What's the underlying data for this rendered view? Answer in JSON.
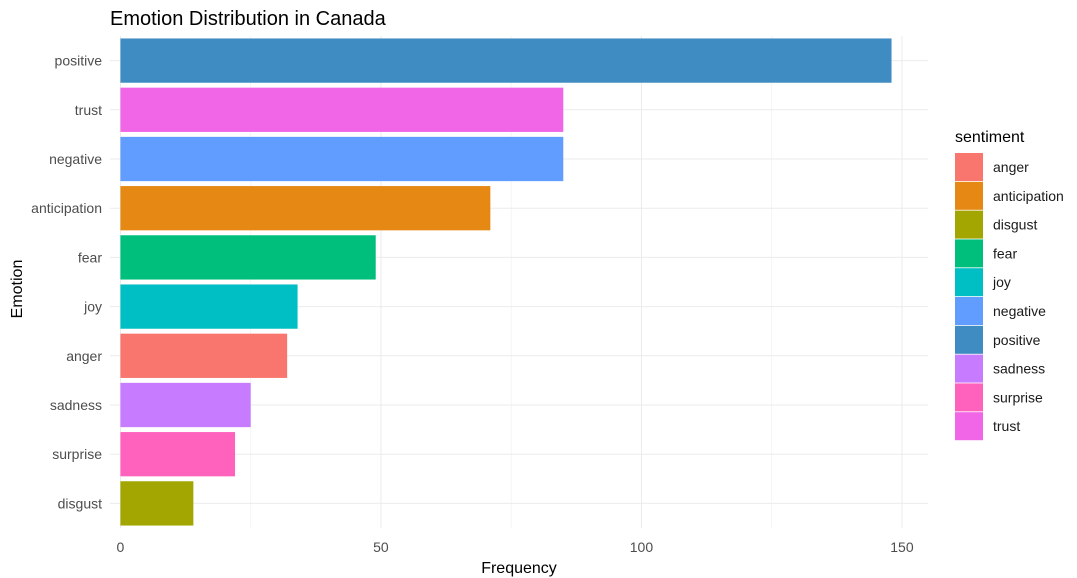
{
  "chart_data": {
    "type": "bar",
    "orientation": "horizontal",
    "title": "Emotion Distribution in Canada",
    "xlabel": "Frequency",
    "ylabel": "Emotion",
    "xlim": [
      -2,
      155
    ],
    "xticks": [
      0,
      50,
      100,
      150
    ],
    "grid": true,
    "legend_position": "right",
    "legend_title": "sentiment",
    "categories": [
      "positive",
      "trust",
      "negative",
      "anticipation",
      "fear",
      "joy",
      "anger",
      "sadness",
      "surprise",
      "disgust"
    ],
    "values": [
      148,
      85,
      85,
      71,
      49,
      34,
      32,
      25,
      22,
      14
    ],
    "colors": {
      "anger": "#F8766D",
      "anticipation": "#E58914",
      "disgust": "#A3A500",
      "fear": "#00BF7D",
      "joy": "#00BFC4",
      "negative": "#619CFF",
      "positive": "#3E8CC1",
      "sadness": "#C77CFF",
      "surprise": "#FF62BC",
      "trust": "#F066E6"
    },
    "legend_items": [
      "anger",
      "anticipation",
      "disgust",
      "fear",
      "joy",
      "negative",
      "positive",
      "sadness",
      "surprise",
      "trust"
    ]
  }
}
